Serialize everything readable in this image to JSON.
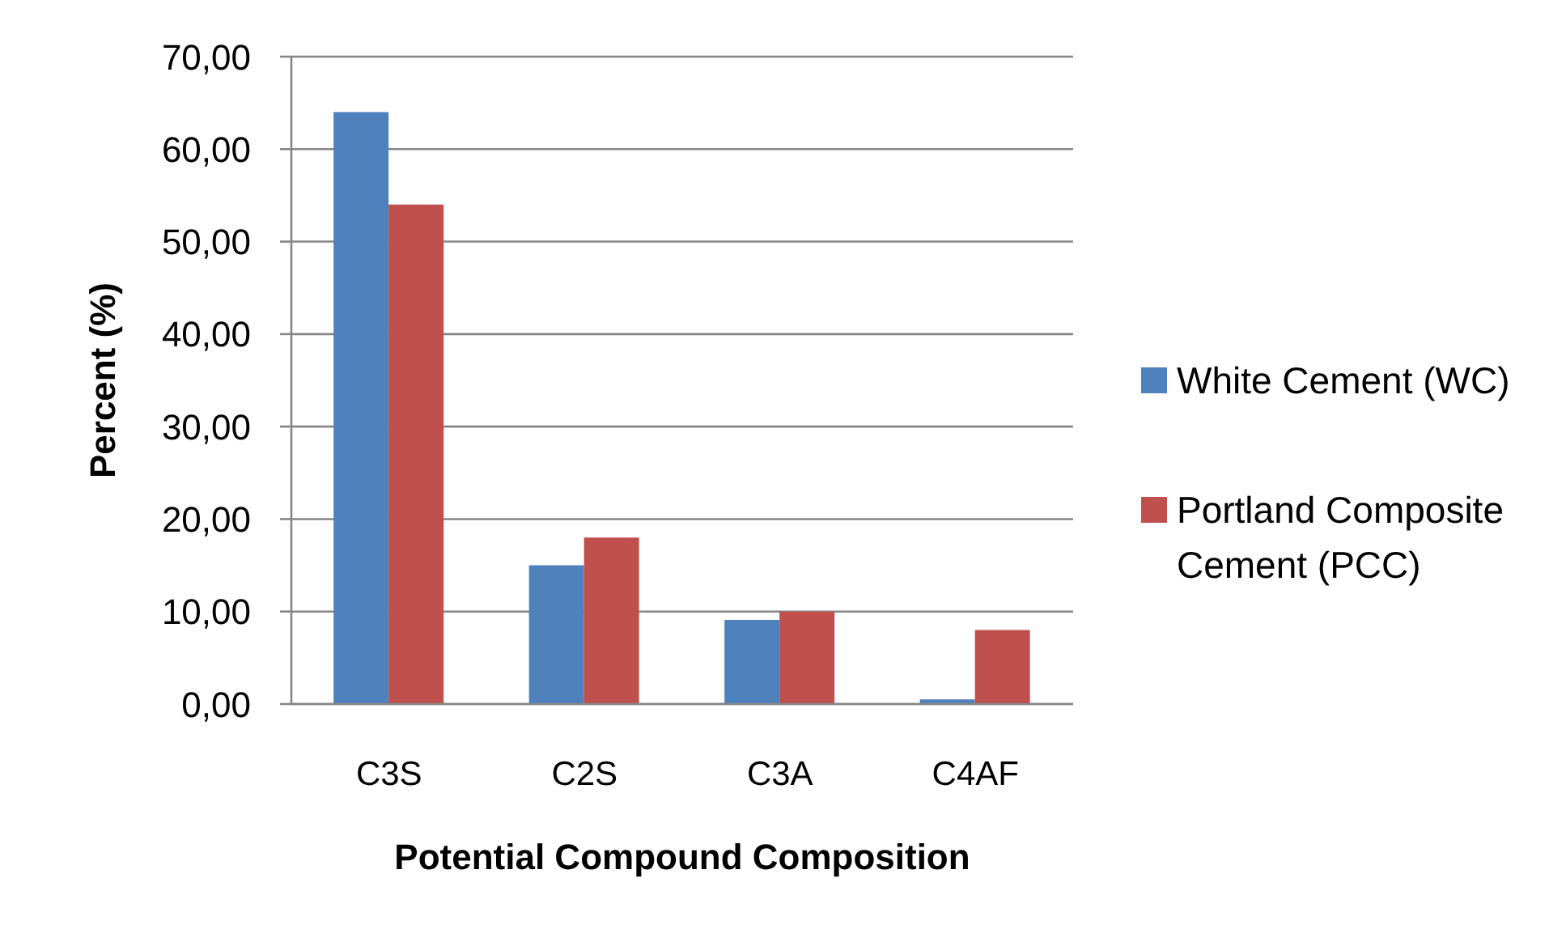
{
  "chart_data": {
    "type": "bar",
    "xlabel": "Potential Compound Composition",
    "ylabel": "Percent (%)",
    "categories": [
      "C3S",
      "C2S",
      "C3A",
      "C4AF"
    ],
    "series": [
      {
        "name": "White Cement (WC)",
        "color": "#4f81bd",
        "values": [
          64,
          15,
          9.1,
          0.5
        ]
      },
      {
        "name": "Portland Composite Cement (PCC)",
        "color": "#c0504d",
        "values": [
          54,
          18,
          10,
          8
        ]
      }
    ],
    "ylim": [
      0,
      70
    ],
    "yticks": [
      {
        "value": 0,
        "label": "0,00"
      },
      {
        "value": 10,
        "label": "10,00"
      },
      {
        "value": 20,
        "label": "20,00"
      },
      {
        "value": 30,
        "label": "30,00"
      },
      {
        "value": 40,
        "label": "40,00"
      },
      {
        "value": 50,
        "label": "50,00"
      },
      {
        "value": 60,
        "label": "60,00"
      },
      {
        "value": 70,
        "label": "70,00"
      }
    ],
    "grid": "y",
    "legend": "right"
  }
}
